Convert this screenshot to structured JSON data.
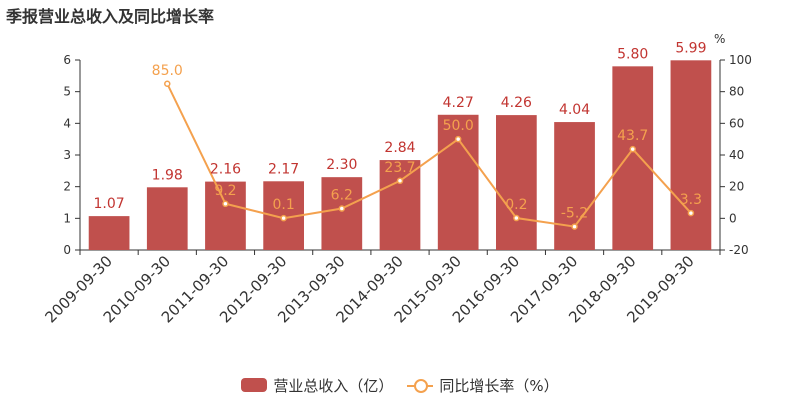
{
  "title": "季报营业总收入及同比增长率",
  "chart_data": {
    "type": "bar",
    "categories": [
      "2009-09-30",
      "2010-09-30",
      "2011-09-30",
      "2012-09-30",
      "2013-09-30",
      "2014-09-30",
      "2015-09-30",
      "2016-09-30",
      "2017-09-30",
      "2018-09-30",
      "2019-09-30"
    ],
    "series": [
      {
        "name": "营业总收入（亿）",
        "type": "bar",
        "axis": "left",
        "color": "#c0504d",
        "values": [
          1.07,
          1.98,
          2.16,
          2.17,
          2.3,
          2.84,
          4.27,
          4.26,
          4.04,
          5.8,
          5.99
        ],
        "labels": [
          "1.07",
          "1.98",
          "2.16",
          "2.17",
          "2.30",
          "2.84",
          "4.27",
          "4.26",
          "4.04",
          "5.80",
          "5.99"
        ]
      },
      {
        "name": "同比增长率（%）",
        "type": "line",
        "axis": "right",
        "color": "#f4a14e",
        "values": [
          null,
          85.0,
          9.2,
          0.1,
          6.2,
          23.7,
          50.0,
          0.2,
          -5.2,
          43.7,
          3.3
        ],
        "labels": [
          "",
          "85.0",
          "9.2",
          "0.1",
          "6.2",
          "23.7",
          "50.0",
          "0.2",
          "-5.2",
          "43.7",
          "3.3"
        ]
      }
    ],
    "y_left": {
      "ylim": [
        0,
        6
      ],
      "ticks": [
        "0",
        "1",
        "2",
        "3",
        "4",
        "5",
        "6"
      ]
    },
    "y_right": {
      "label": "%",
      "ylim": [
        -20,
        100
      ],
      "ticks": [
        "-20",
        "0",
        "20",
        "40",
        "60",
        "80",
        "100"
      ]
    },
    "grid": false,
    "legend_position": "bottom"
  },
  "legend": {
    "bar_label": "营业总收入（亿）",
    "line_label": "同比增长率（%）"
  }
}
